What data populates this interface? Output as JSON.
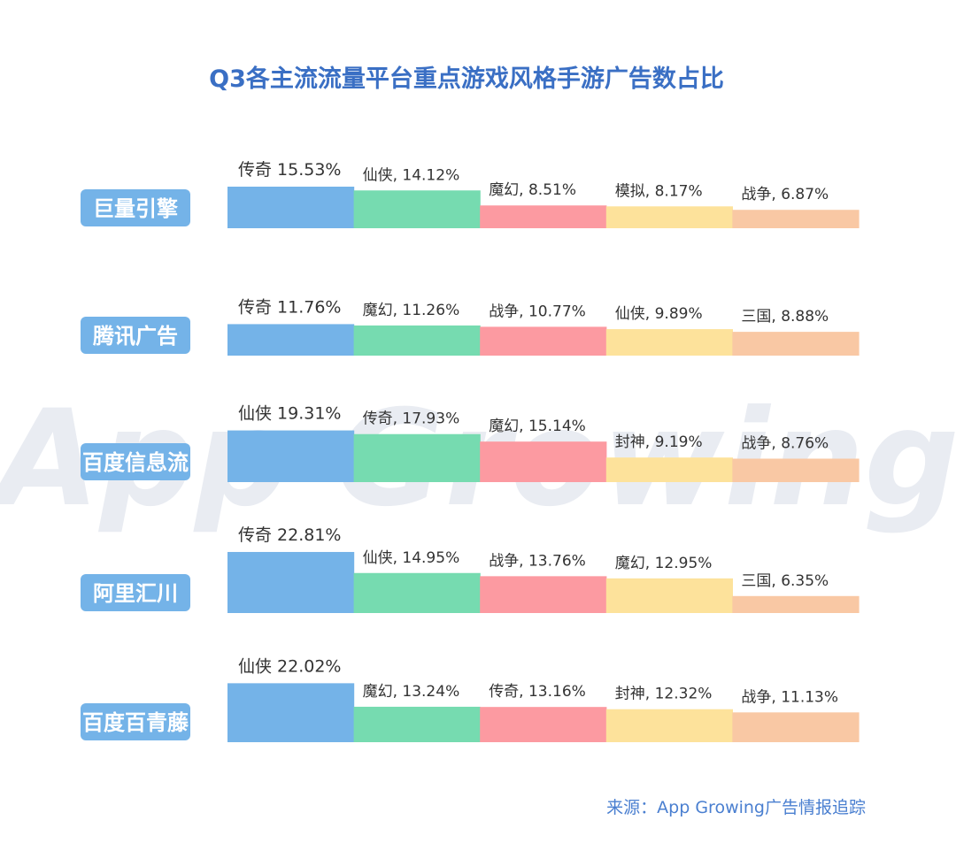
{
  "title": "Q3各主流流量平台重点游戏风格手游广告数占比",
  "source": "来源：App Growing广告情报追踪",
  "watermark": "App Growing",
  "colors": [
    "#74b3e8",
    "#76dbb0",
    "#fc9aa1",
    "#fde29b",
    "#f9c8a4"
  ],
  "platform_label_color": "#74b3e8",
  "chart_data": {
    "type": "bar",
    "title": "Q3各主流流量平台重点游戏风格手游广告数占比",
    "unit": "%",
    "groups": [
      {
        "platform": "巨量引擎",
        "items": [
          {
            "style": "传奇",
            "value": 15.53,
            "label": "传奇 15.53%"
          },
          {
            "style": "仙侠",
            "value": 14.12,
            "label": "仙侠, 14.12%"
          },
          {
            "style": "魔幻",
            "value": 8.51,
            "label": "魔幻, 8.51%"
          },
          {
            "style": "模拟",
            "value": 8.17,
            "label": "模拟, 8.17%"
          },
          {
            "style": "战争",
            "value": 6.87,
            "label": "战争, 6.87%"
          }
        ]
      },
      {
        "platform": "腾讯广告",
        "items": [
          {
            "style": "传奇",
            "value": 11.76,
            "label": "传奇 11.76%"
          },
          {
            "style": "魔幻",
            "value": 11.26,
            "label": "魔幻, 11.26%"
          },
          {
            "style": "战争",
            "value": 10.77,
            "label": "战争, 10.77%"
          },
          {
            "style": "仙侠",
            "value": 9.89,
            "label": "仙侠, 9.89%"
          },
          {
            "style": "三国",
            "value": 8.88,
            "label": "三国, 8.88%"
          }
        ]
      },
      {
        "platform": "百度信息流",
        "items": [
          {
            "style": "仙侠",
            "value": 19.31,
            "label": "仙侠 19.31%"
          },
          {
            "style": "传奇",
            "value": 17.93,
            "label": "传奇, 17.93%"
          },
          {
            "style": "魔幻",
            "value": 15.14,
            "label": "魔幻, 15.14%"
          },
          {
            "style": "封神",
            "value": 9.19,
            "label": "封神, 9.19%"
          },
          {
            "style": "战争",
            "value": 8.76,
            "label": "战争, 8.76%"
          }
        ]
      },
      {
        "platform": "阿里汇川",
        "items": [
          {
            "style": "传奇",
            "value": 22.81,
            "label": "传奇 22.81%"
          },
          {
            "style": "仙侠",
            "value": 14.95,
            "label": "仙侠, 14.95%"
          },
          {
            "style": "战争",
            "value": 13.76,
            "label": "战争, 13.76%"
          },
          {
            "style": "魔幻",
            "value": 12.95,
            "label": "魔幻, 12.95%"
          },
          {
            "style": "三国",
            "value": 6.35,
            "label": "三国, 6.35%"
          }
        ]
      },
      {
        "platform": "百度百青藤",
        "items": [
          {
            "style": "仙侠",
            "value": 22.02,
            "label": "仙侠 22.02%"
          },
          {
            "style": "魔幻",
            "value": 13.24,
            "label": "魔幻, 13.24%"
          },
          {
            "style": "传奇",
            "value": 13.16,
            "label": "传奇, 13.16%"
          },
          {
            "style": "封神",
            "value": 12.32,
            "label": "封神, 12.32%"
          },
          {
            "style": "战争",
            "value": 11.13,
            "label": "战争, 11.13%"
          }
        ]
      }
    ]
  }
}
